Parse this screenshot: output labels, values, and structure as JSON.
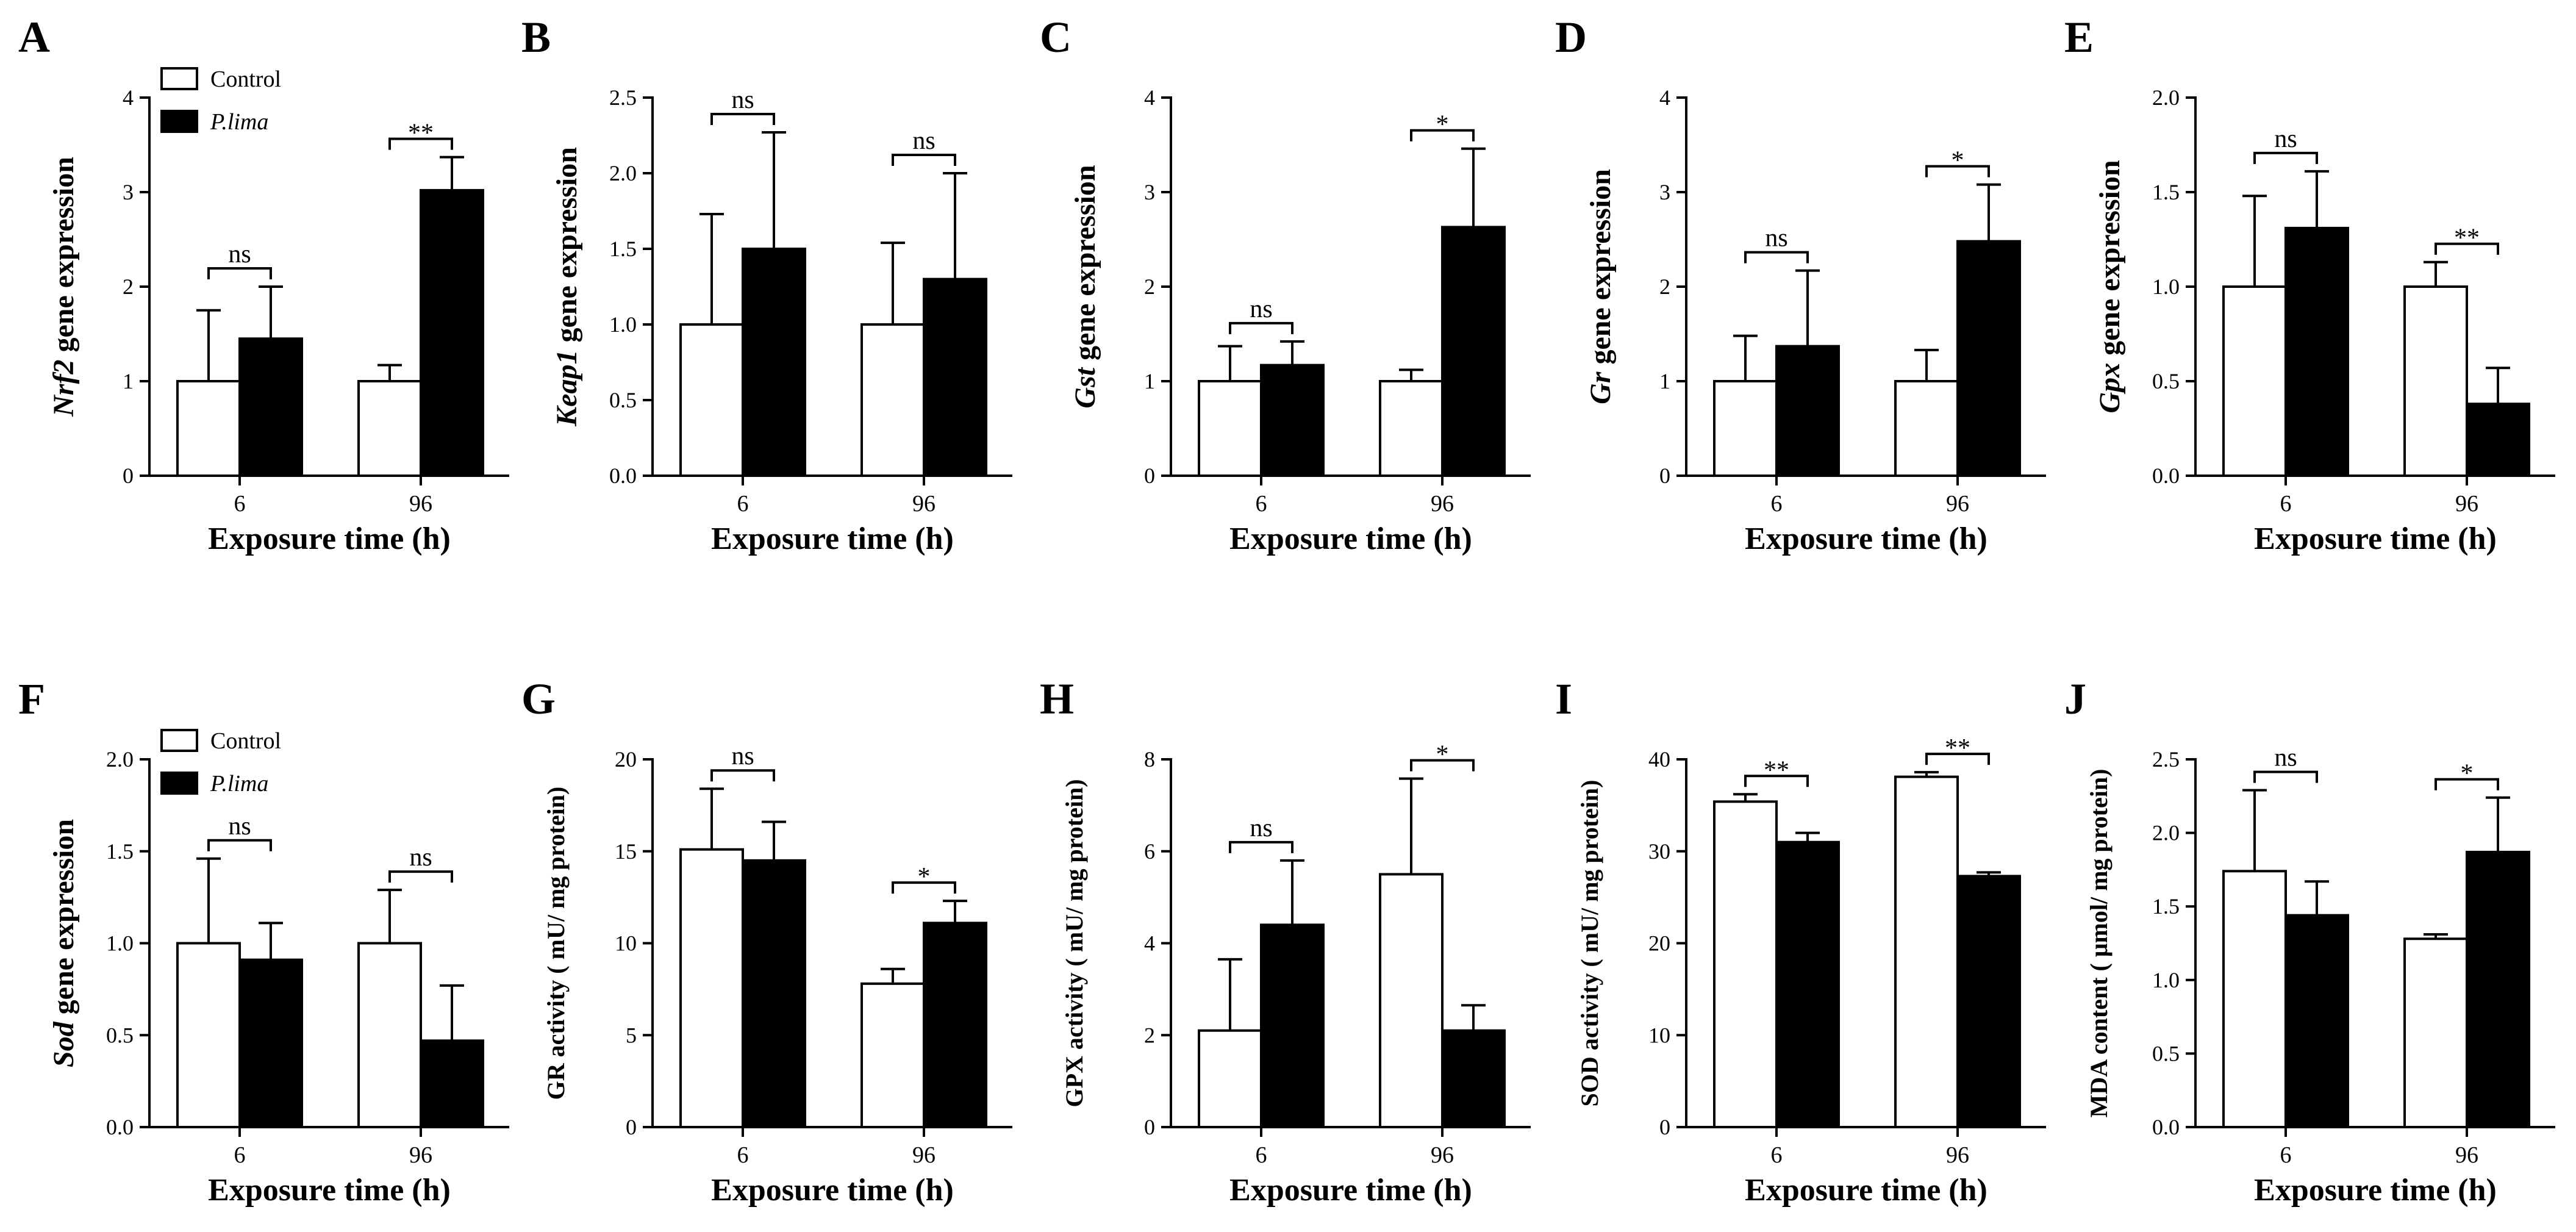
{
  "figure": {
    "legend": {
      "control": "Control",
      "treatment": "P.lima"
    },
    "colors": {
      "control": "#ffffff",
      "treatment": "#000000",
      "stroke": "#000000"
    }
  },
  "chart_data": [
    {
      "type": "bar",
      "panel": "A",
      "title": "",
      "ylabel_italic": "Nrf2",
      "ylabel_rest": " gene expression",
      "ylabel": "Nrf2 gene expression",
      "xlabel": "Exposure time (h)",
      "categories": [
        "6",
        "96"
      ],
      "ylim": [
        0,
        4
      ],
      "ticks": [
        "0",
        "1",
        "2",
        "3",
        "4"
      ],
      "series": [
        {
          "name": "Control",
          "values": [
            1.0,
            1.0
          ],
          "errors": [
            0.75,
            0.17
          ]
        },
        {
          "name": "P.lima",
          "values": [
            1.45,
            3.02
          ],
          "errors": [
            0.55,
            0.35
          ]
        }
      ],
      "significance": [
        "ns",
        "**"
      ],
      "legend": true
    },
    {
      "type": "bar",
      "panel": "B",
      "title": "",
      "ylabel_italic": "Keap1",
      "ylabel_rest": " gene expression",
      "ylabel": "Keap1 gene expression",
      "xlabel": "Exposure time (h)",
      "categories": [
        "6",
        "96"
      ],
      "ylim": [
        0,
        2.5
      ],
      "ticks": [
        "0.0",
        "0.5",
        "1.0",
        "1.5",
        "2.0",
        "2.5"
      ],
      "series": [
        {
          "name": "Control",
          "values": [
            1.0,
            1.0
          ],
          "errors": [
            0.73,
            0.54
          ]
        },
        {
          "name": "P.lima",
          "values": [
            1.5,
            1.3
          ],
          "errors": [
            0.77,
            0.7
          ]
        }
      ],
      "significance": [
        "ns",
        "ns"
      ],
      "legend": false
    },
    {
      "type": "bar",
      "panel": "C",
      "title": "",
      "ylabel_italic": "Gst",
      "ylabel_rest": " gene expression",
      "ylabel": "Gst gene expression",
      "xlabel": "Exposure time (h)",
      "categories": [
        "6",
        "96"
      ],
      "ylim": [
        0,
        4
      ],
      "ticks": [
        "0",
        "1",
        "2",
        "3",
        "4"
      ],
      "series": [
        {
          "name": "Control",
          "values": [
            1.0,
            1.0
          ],
          "errors": [
            0.37,
            0.12
          ]
        },
        {
          "name": "P.lima",
          "values": [
            1.17,
            2.63
          ],
          "errors": [
            0.25,
            0.83
          ]
        }
      ],
      "significance": [
        "ns",
        "*"
      ],
      "legend": false
    },
    {
      "type": "bar",
      "panel": "D",
      "title": "",
      "ylabel_italic": "Gr",
      "ylabel_rest": " gene expression",
      "ylabel": "Gr gene expression",
      "xlabel": "Exposure time (h)",
      "categories": [
        "6",
        "96"
      ],
      "ylim": [
        0,
        4
      ],
      "ticks": [
        "0",
        "1",
        "2",
        "3",
        "4"
      ],
      "series": [
        {
          "name": "Control",
          "values": [
            1.0,
            1.0
          ],
          "errors": [
            0.48,
            0.33
          ]
        },
        {
          "name": "P.lima",
          "values": [
            1.37,
            2.48
          ],
          "errors": [
            0.8,
            0.6
          ]
        }
      ],
      "significance": [
        "ns",
        "*"
      ],
      "legend": false
    },
    {
      "type": "bar",
      "panel": "E",
      "title": "",
      "ylabel_italic": "Gpx",
      "ylabel_rest": " gene expression",
      "ylabel": "Gpx gene expression",
      "xlabel": "Exposure time (h)",
      "categories": [
        "6",
        "96"
      ],
      "ylim": [
        0,
        2.0
      ],
      "ticks": [
        "0.0",
        "0.5",
        "1.0",
        "1.5",
        "2.0"
      ],
      "series": [
        {
          "name": "Control",
          "values": [
            1.0,
            1.0
          ],
          "errors": [
            0.48,
            0.13
          ]
        },
        {
          "name": "P.lima",
          "values": [
            1.31,
            0.38
          ],
          "errors": [
            0.3,
            0.19
          ]
        }
      ],
      "significance": [
        "ns",
        "**"
      ],
      "legend": false
    },
    {
      "type": "bar",
      "panel": "F",
      "title": "",
      "ylabel_italic": "Sod",
      "ylabel_rest": " gene expression",
      "ylabel": "Sod gene expression",
      "xlabel": "Exposure time (h)",
      "categories": [
        "6",
        "96"
      ],
      "ylim": [
        0,
        2.0
      ],
      "ticks": [
        "0.0",
        "0.5",
        "1.0",
        "1.5",
        "2.0"
      ],
      "series": [
        {
          "name": "Control",
          "values": [
            1.0,
            1.0
          ],
          "errors": [
            0.46,
            0.29
          ]
        },
        {
          "name": "P.lima",
          "values": [
            0.91,
            0.47
          ],
          "errors": [
            0.2,
            0.3
          ]
        }
      ],
      "significance": [
        "ns",
        "ns"
      ],
      "legend": true
    },
    {
      "type": "bar",
      "panel": "G",
      "title": "",
      "ylabel_italic": "",
      "ylabel_rest": "GR activity ( mU/ mg protein)",
      "ylabel": "GR activity ( mU/ mg protein)",
      "xlabel": "Exposure time (h)",
      "categories": [
        "6",
        "96"
      ],
      "ylim": [
        0,
        20
      ],
      "ticks": [
        "0",
        "5",
        "10",
        "15",
        "20"
      ],
      "series": [
        {
          "name": "Control",
          "values": [
            15.1,
            7.8
          ],
          "errors": [
            3.3,
            0.8
          ]
        },
        {
          "name": "P.lima",
          "values": [
            14.5,
            11.1
          ],
          "errors": [
            2.1,
            1.2
          ]
        }
      ],
      "significance": [
        "ns",
        "*"
      ],
      "legend": false
    },
    {
      "type": "bar",
      "panel": "H",
      "title": "",
      "ylabel_italic": "",
      "ylabel_rest": "GPX activity ( mU/ mg protein)",
      "ylabel": "GPX activity ( mU/ mg protein)",
      "xlabel": "Exposure time (h)",
      "categories": [
        "6",
        "96"
      ],
      "ylim": [
        0,
        8
      ],
      "ticks": [
        "0",
        "2",
        "4",
        "6",
        "8"
      ],
      "series": [
        {
          "name": "Control",
          "values": [
            2.1,
            5.5
          ],
          "errors": [
            1.55,
            2.08
          ]
        },
        {
          "name": "P.lima",
          "values": [
            4.4,
            2.1
          ],
          "errors": [
            1.4,
            0.55
          ]
        }
      ],
      "significance": [
        "ns",
        "*"
      ],
      "legend": false
    },
    {
      "type": "bar",
      "panel": "I",
      "title": "",
      "ylabel_italic": "",
      "ylabel_rest": "SOD activity ( mU/ mg protein)",
      "ylabel": "SOD activity ( mU/ mg protein)",
      "xlabel": "Exposure time (h)",
      "categories": [
        "6",
        "96"
      ],
      "ylim": [
        0,
        40
      ],
      "ticks": [
        "0",
        "10",
        "20",
        "30",
        "40"
      ],
      "series": [
        {
          "name": "Control",
          "values": [
            35.4,
            38.1
          ],
          "errors": [
            0.8,
            0.5
          ]
        },
        {
          "name": "P.lima",
          "values": [
            31.0,
            27.3
          ],
          "errors": [
            1.0,
            0.4
          ]
        }
      ],
      "significance": [
        "**",
        "**"
      ],
      "legend": false
    },
    {
      "type": "bar",
      "panel": "J",
      "title": "",
      "ylabel_italic": "",
      "ylabel_rest": "MDA content ( μmol/ mg protein)",
      "ylabel": "MDA content ( μmol/ mg protein)",
      "xlabel": "Exposure time (h)",
      "categories": [
        "6",
        "96"
      ],
      "ylim": [
        0,
        2.5
      ],
      "ticks": [
        "0.0",
        "0.5",
        "1.0",
        "1.5",
        "2.0",
        "2.5"
      ],
      "series": [
        {
          "name": "Control",
          "values": [
            1.74,
            1.28
          ],
          "errors": [
            0.55,
            0.03
          ]
        },
        {
          "name": "P.lima",
          "values": [
            1.44,
            1.87
          ],
          "errors": [
            0.23,
            0.37
          ]
        }
      ],
      "significance": [
        "ns",
        "*"
      ],
      "legend": false
    }
  ]
}
